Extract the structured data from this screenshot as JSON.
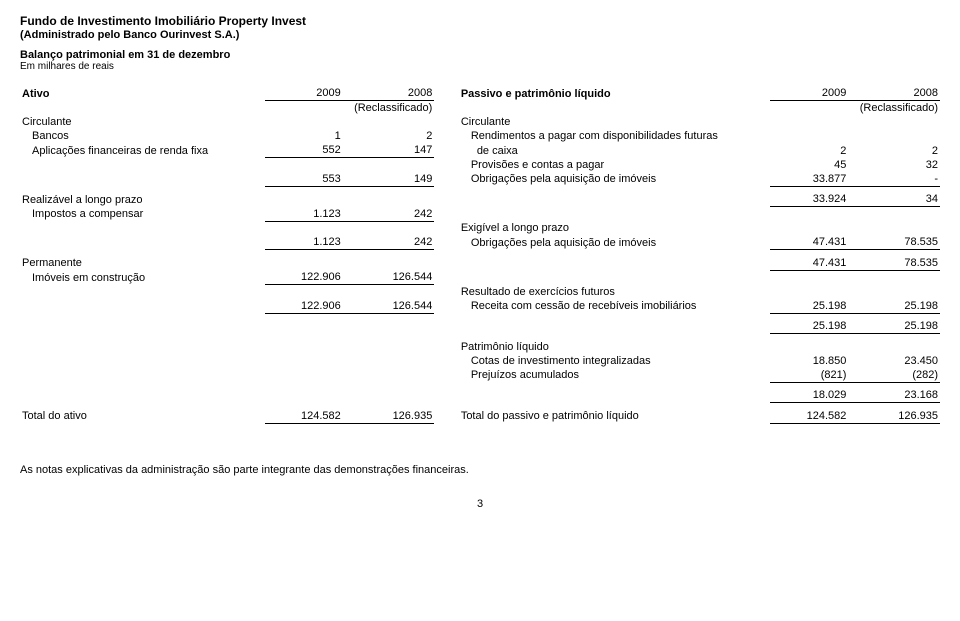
{
  "header": {
    "title": "Fundo de Investimento Imobiliário Property Invest",
    "admin": "(Administrado pelo Banco Ourinvest S.A.)",
    "subtitle": "Balanço patrimonial em 31 de dezembro",
    "unit": "Em milhares de reais"
  },
  "col": {
    "ativo": "Ativo",
    "y2009": "2009",
    "y2008": "2008",
    "reclass": "(Reclassificado)",
    "passivo": "Passivo e patrimônio líquido"
  },
  "ativo": {
    "circulante": "Circulante",
    "bancos": "Bancos",
    "bancos_09": "1",
    "bancos_08": "2",
    "aplic": "Aplicações financeiras de renda fixa",
    "aplic_09": "552",
    "aplic_08": "147",
    "sub1_09": "553",
    "sub1_08": "149",
    "realiz": "Realizável a longo prazo",
    "impostos": "Impostos a compensar",
    "impostos_09": "1.123",
    "impostos_08": "242",
    "sub2_09": "1.123",
    "sub2_08": "242",
    "perm": "Permanente",
    "imoveis": "Imóveis em construção",
    "imoveis_09": "122.906",
    "imoveis_08": "126.544",
    "sub3_09": "122.906",
    "sub3_08": "126.544",
    "total": "Total do ativo",
    "total_09": "124.582",
    "total_08": "126.935"
  },
  "passivo": {
    "circulante": "Circulante",
    "rend": "Rendimentos a pagar com disponibilidades futuras",
    "caixa": "de caixa",
    "caixa_09": "2",
    "caixa_08": "2",
    "prov": "Provisões e contas a pagar",
    "prov_09": "45",
    "prov_08": "32",
    "obrig1": "Obrigações pela aquisição de imóveis",
    "obrig1_09": "33.877",
    "obrig1_08": "-",
    "sub1_09": "33.924",
    "sub1_08": "34",
    "exig": "Exigível a longo prazo",
    "obrig2": "Obrigações pela aquisição de imóveis",
    "obrig2_09": "47.431",
    "obrig2_08": "78.535",
    "sub2_09": "47.431",
    "sub2_08": "78.535",
    "result": "Resultado de exercícios futuros",
    "receita": "Receita com cessão de recebíveis imobiliários",
    "receita_09": "25.198",
    "receita_08": "25.198",
    "sub3_09": "25.198",
    "sub3_08": "25.198",
    "pl": "Patrimônio líquido",
    "cotas": "Cotas de investimento integralizadas",
    "cotas_09": "18.850",
    "cotas_08": "23.450",
    "prej": "Prejuízos acumulados",
    "prej_09": "(821)",
    "prej_08": "(282)",
    "sub4_09": "18.029",
    "sub4_08": "23.168",
    "total": "Total do passivo e patrimônio líquido",
    "total_09": "124.582",
    "total_08": "126.935"
  },
  "notes": "As notas explicativas da administração são parte integrante das demonstrações financeiras.",
  "page": "3"
}
